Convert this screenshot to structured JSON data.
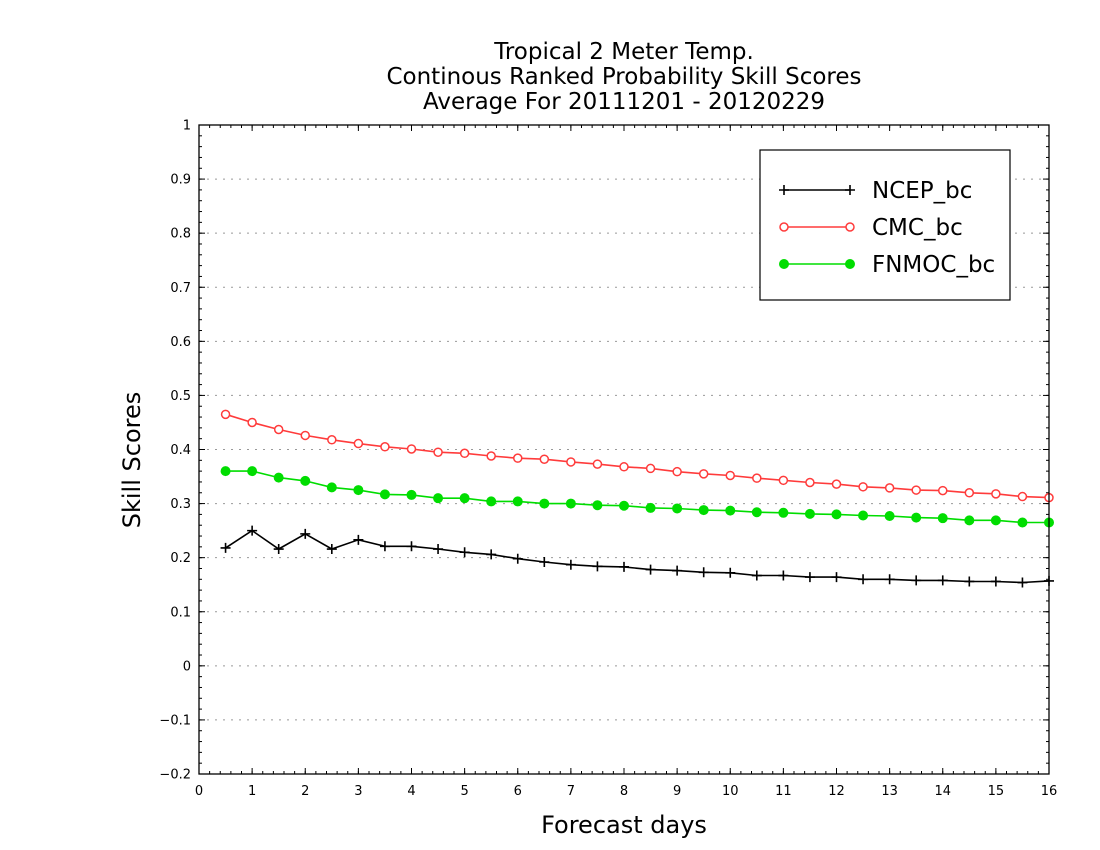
{
  "chart_data": {
    "type": "line",
    "title": [
      "Tropical 2 Meter Temp.",
      "Continous Ranked Probability Skill Scores",
      "Average For 20111201 - 20120229"
    ],
    "xlabel": "Forecast days",
    "ylabel": "Skill Scores",
    "xlim": [
      0,
      16
    ],
    "ylim": [
      -0.2,
      1
    ],
    "xticks": [
      "0",
      "1",
      "2",
      "3",
      "4",
      "5",
      "6",
      "7",
      "8",
      "9",
      "10",
      "11",
      "12",
      "13",
      "14",
      "15",
      "16"
    ],
    "yticks": [
      "−0.2",
      "−0.1",
      "0",
      "0.1",
      "0.2",
      "0.3",
      "0.4",
      "0.5",
      "0.6",
      "0.7",
      "0.8",
      "0.9",
      "1"
    ],
    "grid": "horizontal-dotted",
    "legend_position": "top-right",
    "x": [
      0.5,
      1,
      1.5,
      2,
      2.5,
      3,
      3.5,
      4,
      4.5,
      5,
      5.5,
      6,
      6.5,
      7,
      7.5,
      8,
      8.5,
      9,
      9.5,
      10,
      10.5,
      11,
      11.5,
      12,
      12.5,
      13,
      13.5,
      14,
      14.5,
      15,
      15.5,
      16
    ],
    "series": [
      {
        "name": "NCEP_bc",
        "color": "#000000",
        "marker": "plus",
        "values": [
          0.218,
          0.25,
          0.216,
          0.244,
          0.216,
          0.233,
          0.221,
          0.221,
          0.216,
          0.21,
          0.206,
          0.198,
          0.192,
          0.187,
          0.184,
          0.183,
          0.178,
          0.176,
          0.173,
          0.172,
          0.167,
          0.167,
          0.164,
          0.164,
          0.16,
          0.16,
          0.158,
          0.158,
          0.156,
          0.156,
          0.154,
          0.157
        ]
      },
      {
        "name": "CMC_bc",
        "color": "#ff3b3b",
        "marker": "open-circle",
        "values": [
          0.465,
          0.45,
          0.437,
          0.426,
          0.418,
          0.411,
          0.405,
          0.401,
          0.395,
          0.393,
          0.388,
          0.384,
          0.382,
          0.377,
          0.373,
          0.368,
          0.365,
          0.359,
          0.355,
          0.352,
          0.347,
          0.343,
          0.339,
          0.336,
          0.331,
          0.329,
          0.325,
          0.324,
          0.32,
          0.318,
          0.313,
          0.311
        ]
      },
      {
        "name": "FNMOC_bc",
        "color": "#00dd00",
        "marker": "filled-circle",
        "values": [
          0.36,
          0.36,
          0.348,
          0.342,
          0.33,
          0.325,
          0.317,
          0.316,
          0.31,
          0.31,
          0.304,
          0.304,
          0.3,
          0.3,
          0.297,
          0.296,
          0.292,
          0.291,
          0.288,
          0.287,
          0.284,
          0.283,
          0.281,
          0.28,
          0.278,
          0.277,
          0.274,
          0.273,
          0.269,
          0.269,
          0.265,
          0.265
        ]
      }
    ]
  }
}
